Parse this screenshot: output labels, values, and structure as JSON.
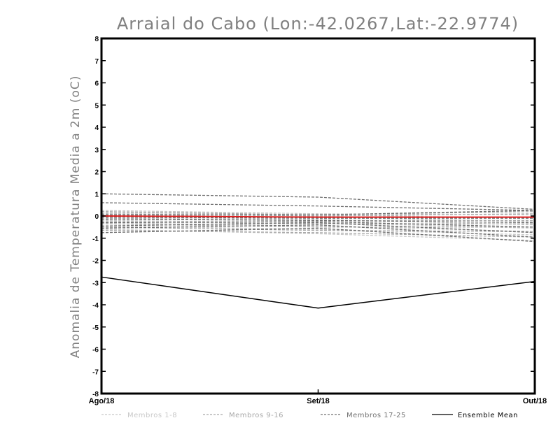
{
  "chart_data": {
    "type": "line",
    "title": "Arraial do Cabo (Lon:-42.0267,Lat:-22.9774)",
    "ylabel": "Anomalia de Temperatura Media a 2m (oC)",
    "xlabel": "",
    "categories": [
      "Ago/18",
      "Set/18",
      "Out/18"
    ],
    "ylim": [
      -8,
      8
    ],
    "yticks": [
      "-8",
      "-7",
      "-6",
      "-5",
      "-4",
      "-3",
      "-2",
      "-1",
      "0",
      "1",
      "2",
      "3",
      "4",
      "5",
      "6",
      "7",
      "8"
    ],
    "grid": false,
    "legend_position": "bottom",
    "groups": [
      {
        "name": "Membros 1-8",
        "color": "#c8c8c8",
        "values": [
          [
            0.25,
            0.1,
            0.05
          ],
          [
            0.15,
            0.05,
            -0.1
          ],
          [
            0.05,
            -0.05,
            -0.25
          ],
          [
            -0.05,
            -0.15,
            -0.4
          ],
          [
            -0.2,
            -0.3,
            -0.55
          ],
          [
            -0.3,
            -0.45,
            -0.7
          ],
          [
            -0.45,
            -0.6,
            -0.85
          ],
          [
            -0.6,
            -0.8,
            -1.1
          ]
        ]
      },
      {
        "name": "Membros 9-16",
        "color": "#a8a8a8",
        "values": [
          [
            0.2,
            0.05,
            0.2
          ],
          [
            0.1,
            0.0,
            0.1
          ],
          [
            0.0,
            -0.1,
            -0.05
          ],
          [
            -0.1,
            -0.2,
            -0.2
          ],
          [
            -0.25,
            -0.35,
            -0.35
          ],
          [
            -0.35,
            -0.5,
            -0.5
          ],
          [
            -0.5,
            -0.65,
            -0.7
          ],
          [
            -0.65,
            -0.75,
            -0.95
          ]
        ]
      },
      {
        "name": "Membros 17-25",
        "color": "#707070",
        "values": [
          [
            1.0,
            0.85,
            0.3
          ],
          [
            0.6,
            0.45,
            0.25
          ],
          [
            0.05,
            0.05,
            0.25
          ],
          [
            -0.05,
            -0.1,
            -0.1
          ],
          [
            -0.15,
            -0.2,
            -0.3
          ],
          [
            -0.3,
            -0.25,
            -0.5
          ],
          [
            -0.45,
            -0.3,
            -0.75
          ],
          [
            -0.55,
            -0.4,
            -0.95
          ],
          [
            -0.75,
            -0.55,
            -1.15
          ]
        ]
      }
    ],
    "series": [
      {
        "name": "Ensemble Mean",
        "color": "#000000",
        "values": [
          -2.75,
          -4.15,
          -2.95
        ]
      },
      {
        "name": "",
        "color": "#e02020",
        "values": [
          0.0,
          -0.05,
          -0.05
        ]
      }
    ]
  }
}
